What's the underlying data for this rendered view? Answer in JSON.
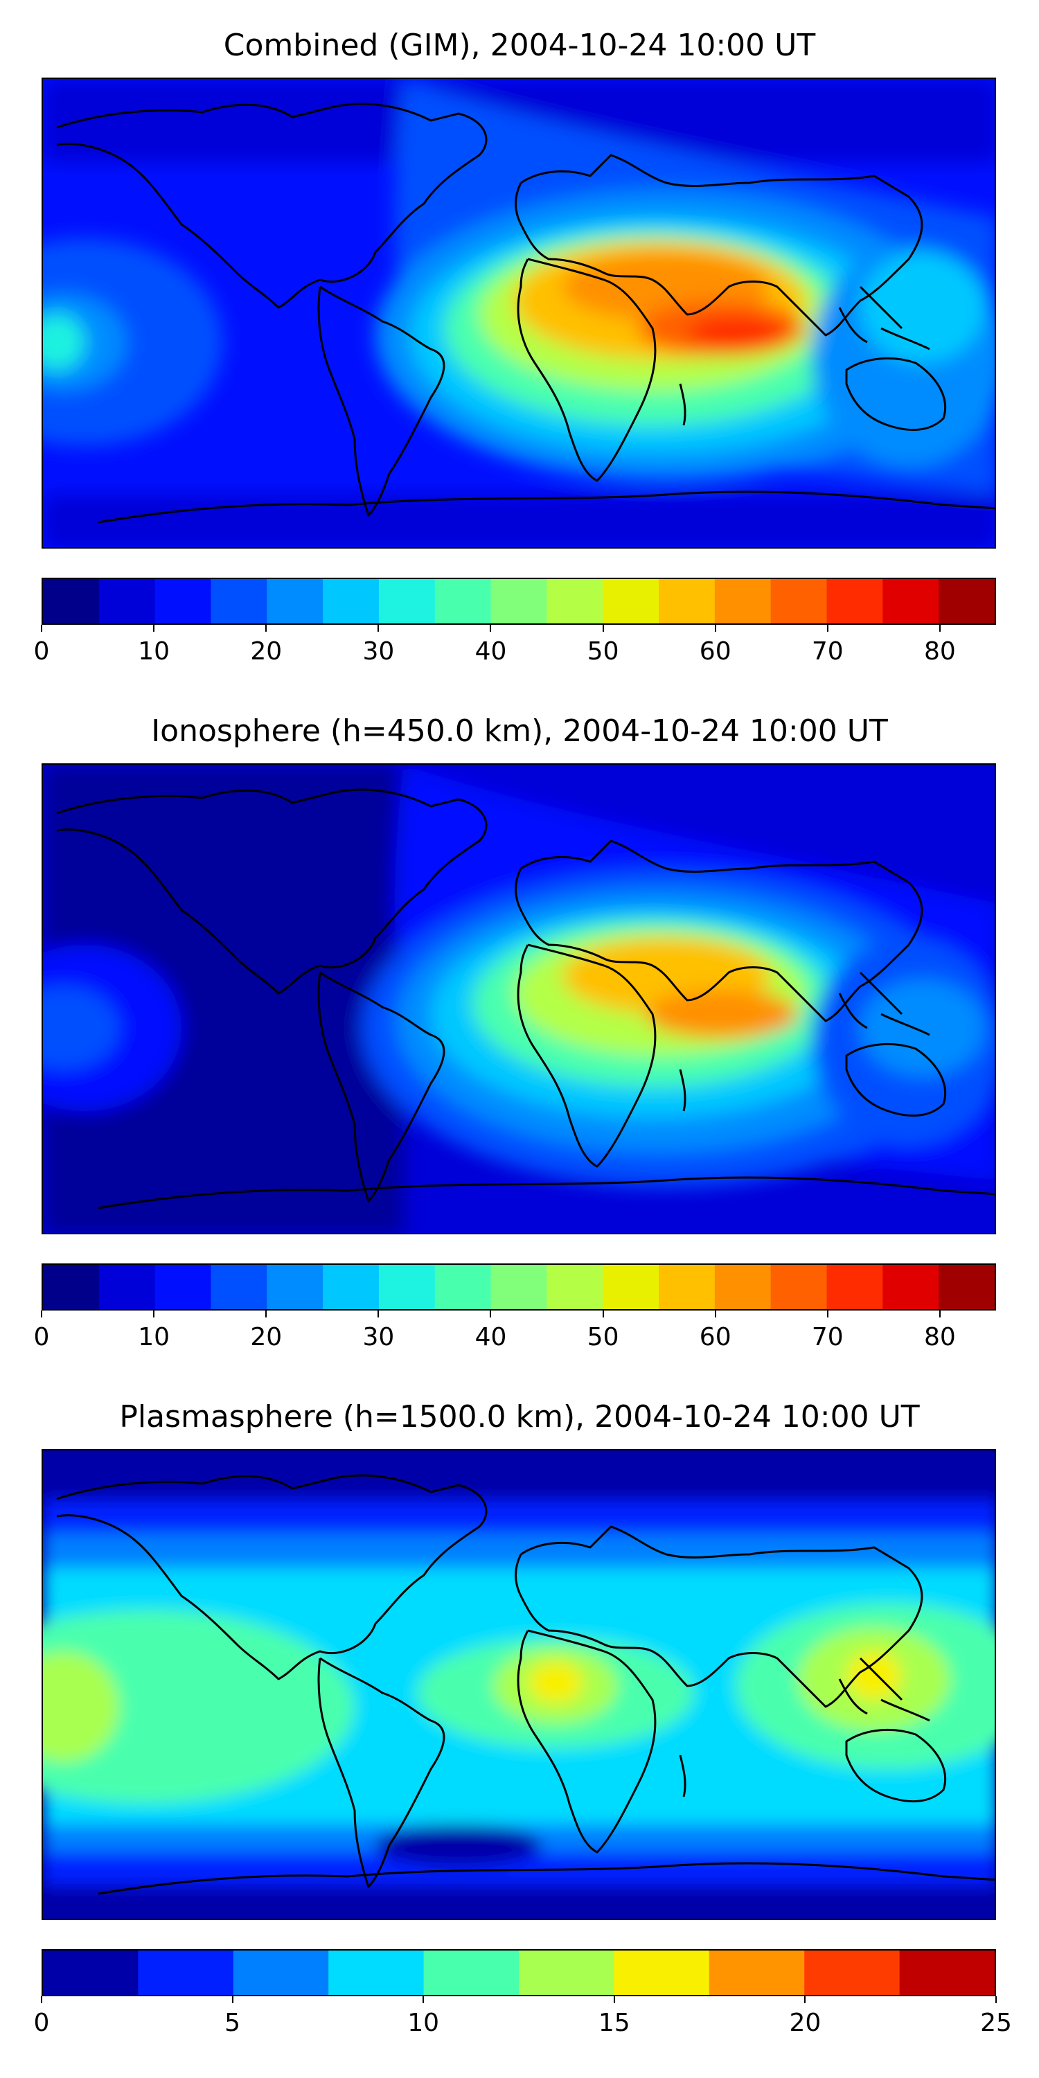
{
  "panels": [
    {
      "title": "Combined (GIM), 2004-10-24 10:00 UT",
      "colorbar": {
        "range": [
          0,
          85
        ],
        "step": 5,
        "ticks": [
          "0",
          "10",
          "20",
          "30",
          "40",
          "50",
          "60",
          "70",
          "80"
        ],
        "colors": [
          "#00008b",
          "#0000d8",
          "#0010ff",
          "#0050ff",
          "#008cff",
          "#00c8ff",
          "#1ef2e0",
          "#48ffae",
          "#82ff7a",
          "#b4ff46",
          "#e8f000",
          "#ffc000",
          "#ff9000",
          "#ff6000",
          "#ff2c00",
          "#e00000",
          "#a00000"
        ]
      }
    },
    {
      "title": "Ionosphere  (h=450.0 km), 2004-10-24 10:00 UT",
      "colorbar": {
        "range": [
          0,
          85
        ],
        "step": 5,
        "ticks": [
          "0",
          "10",
          "20",
          "30",
          "40",
          "50",
          "60",
          "70",
          "80"
        ],
        "colors": [
          "#00008b",
          "#0000d8",
          "#0010ff",
          "#0050ff",
          "#008cff",
          "#00c8ff",
          "#1ef2e0",
          "#48ffae",
          "#82ff7a",
          "#b4ff46",
          "#e8f000",
          "#ffc000",
          "#ff9000",
          "#ff6000",
          "#ff2c00",
          "#e00000",
          "#a00000"
        ]
      }
    },
    {
      "title": "Plasmasphere (h=1500.0 km), 2004-10-24 10:00 UT",
      "colorbar": {
        "range": [
          0,
          25
        ],
        "step": 2.5,
        "ticks": [
          "0",
          "5",
          "10",
          "15",
          "20",
          "25"
        ],
        "colors": [
          "#0000a8",
          "#0020ff",
          "#0080ff",
          "#00dcff",
          "#48ffae",
          "#a8ff50",
          "#f8f000",
          "#ff9400",
          "#ff3c00",
          "#c00000"
        ]
      }
    }
  ]
}
